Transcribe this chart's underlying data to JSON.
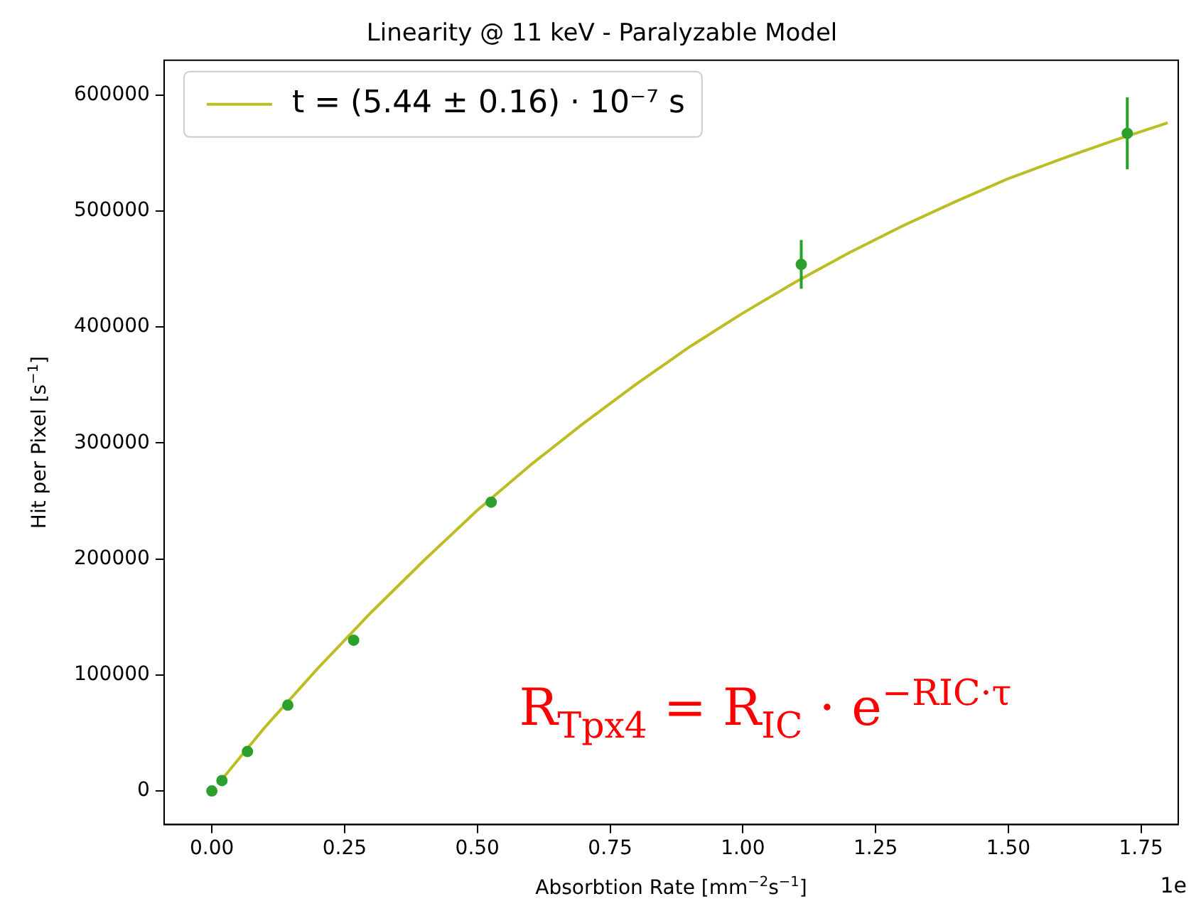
{
  "chart_data": {
    "type": "scatter",
    "title": "Linearity @ 11 keV - Paralyzable Model",
    "xlabel": "Absorbtion Rate [mm$^{−2}$s$^{−1}$]",
    "ylabel": "Hit per Pixel [s$^{−1}$]",
    "xlim": [
      -0.09,
      1.82
    ],
    "xticks": [
      {
        "value": 0,
        "label": "0.00"
      },
      {
        "value": 0.25,
        "label": "0.25"
      },
      {
        "value": 0.5,
        "label": "0.50"
      },
      {
        "value": 0.75,
        "label": "0.75"
      },
      {
        "value": 1,
        "label": "1.00"
      },
      {
        "value": 1.25,
        "label": "1.25"
      },
      {
        "value": 1.5,
        "label": "1.50"
      },
      {
        "value": 1.75,
        "label": "1.75"
      }
    ],
    "ylim": [
      -29000,
      630000
    ],
    "yticks": [
      0,
      100000,
      200000,
      300000,
      400000,
      500000,
      600000
    ],
    "grid": false,
    "legend": "top left",
    "series": [
      {
        "type": "scatter",
        "color": "#2ca02c",
        "marker": "circle",
        "x": [
          0,
          0.019,
          0.067,
          0.143,
          0.267,
          0.526,
          1.11,
          1.724
        ],
        "values": [
          0,
          9000,
          34000,
          74000,
          130000,
          249000,
          454000,
          567000
        ],
        "errors": [
          null,
          null,
          null,
          null,
          null,
          null,
          21000,
          31000
        ]
      },
      {
        "type": "line",
        "name": "t = (5.44 ± 0.16) · 10⁻⁷ s",
        "color": "#bcbd22",
        "marker": "none",
        "x": [
          0.019,
          0.1,
          0.2,
          0.3,
          0.4,
          0.5,
          0.6,
          0.7,
          0.8,
          0.9,
          1.0,
          1.1,
          1.2,
          1.3,
          1.4,
          1.5,
          1.6,
          1.7,
          1.8
        ],
        "values": [
          10000,
          55000,
          106000,
          154000,
          199000,
          242000,
          281000,
          317000,
          351000,
          383000,
          412000,
          439000,
          464000,
          487000,
          508000,
          528000,
          545000,
          561000,
          576000
        ]
      }
    ],
    "annotations": [
      "R$_{Tpx4}$ = R$_{IC}$ · e$^{−RIC·τ}$",
      "1e"
    ]
  }
}
